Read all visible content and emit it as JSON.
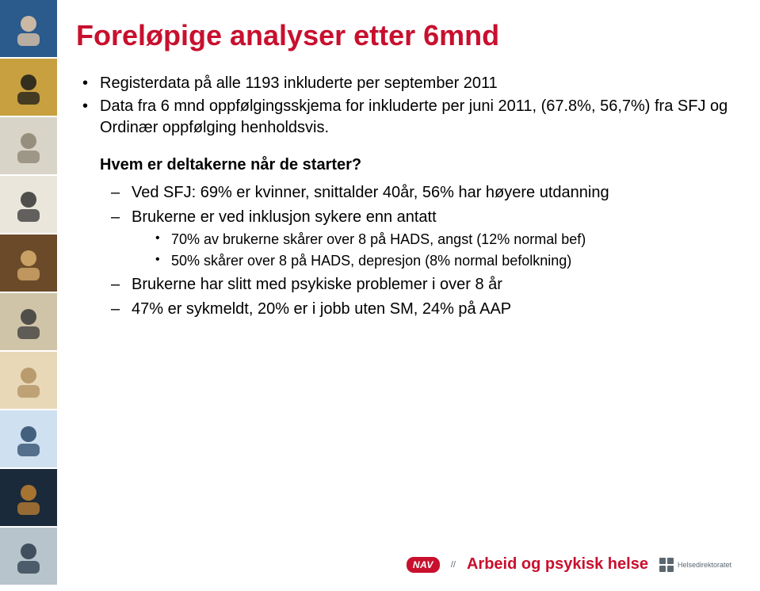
{
  "title": "Foreløpige analyser etter 6mnd",
  "title_color": "#c8102e",
  "bullets": [
    "Registerdata på alle 1193 inkluderte per september 2011",
    "Data fra 6 mnd oppfølgingsskjema for inkluderte per juni 2011, (67.8%, 56,7%)  fra SFJ og Ordinær oppfølging henholdsvis."
  ],
  "subheading": "Hvem er deltakerne når de starter?",
  "dash_items": [
    {
      "text": "Ved SFJ: 69% er kvinner, snittalder 40år, 56% har høyere utdanning"
    },
    {
      "text": "Brukerne er ved inklusjon sykere enn antatt",
      "sub": [
        "70% av brukerne skårer over 8 på HADS, angst (12% normal bef)",
        "50% skårer over 8 på HADS, depresjon (8% normal befolkning)"
      ]
    },
    {
      "text": "Brukerne har slitt med psykiske problemer i over 8 år"
    },
    {
      "text": "47% er sykmeldt, 20% er i jobb uten SM, 24% på AAP"
    }
  ],
  "sidebar_thumbs": [
    {
      "bg": "#2b5a8c",
      "fg": "#e8c9a8"
    },
    {
      "bg": "#c8a040",
      "fg": "#1a1a1a"
    },
    {
      "bg": "#d9d4c8",
      "fg": "#8a8270"
    },
    {
      "bg": "#eae6dc",
      "fg": "#333"
    },
    {
      "bg": "#6b4a2a",
      "fg": "#d9b070"
    },
    {
      "bg": "#d0c4a8",
      "fg": "#3a3a3a"
    },
    {
      "bg": "#e8d8b8",
      "fg": "#b09060"
    },
    {
      "bg": "#cfe0f0",
      "fg": "#2a4a6a"
    },
    {
      "bg": "#1a2a3a",
      "fg": "#c08030"
    },
    {
      "bg": "#b8c4cc",
      "fg": "#2a3a4a"
    }
  ],
  "footer": {
    "nav_label": "NAV",
    "brand": "Arbeid og psykisk helse",
    "hd_label": "Helsedirektoratet"
  },
  "body_font_size": 20,
  "sub_font_size": 18,
  "text_color": "#000000",
  "background": "#ffffff"
}
